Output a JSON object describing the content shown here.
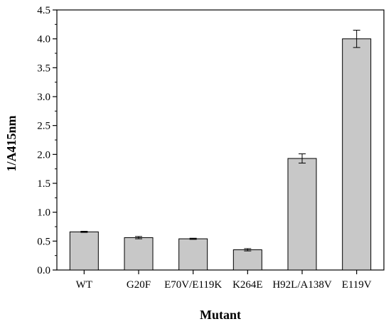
{
  "chart_data": {
    "type": "bar",
    "title": "",
    "xlabel": "Mutant",
    "ylabel": "1/A415nm",
    "categories": [
      "WT",
      "G20F",
      "E70V/E119K",
      "K264E",
      "H92L/A138V",
      "E119V"
    ],
    "values": [
      0.66,
      0.56,
      0.54,
      0.35,
      1.93,
      4.0
    ],
    "error": [
      0.01,
      0.02,
      0.01,
      0.02,
      0.08,
      0.15
    ],
    "ylim": [
      0,
      4.5
    ],
    "yticks": [
      "0.0",
      "0.5",
      "1.0",
      "1.5",
      "2.0",
      "2.5",
      "3.0",
      "3.5",
      "4.0",
      "4.5"
    ],
    "bar_color": "#c8c8c8",
    "bar_edge_color": "#000000",
    "grid": false,
    "legend": "none"
  }
}
